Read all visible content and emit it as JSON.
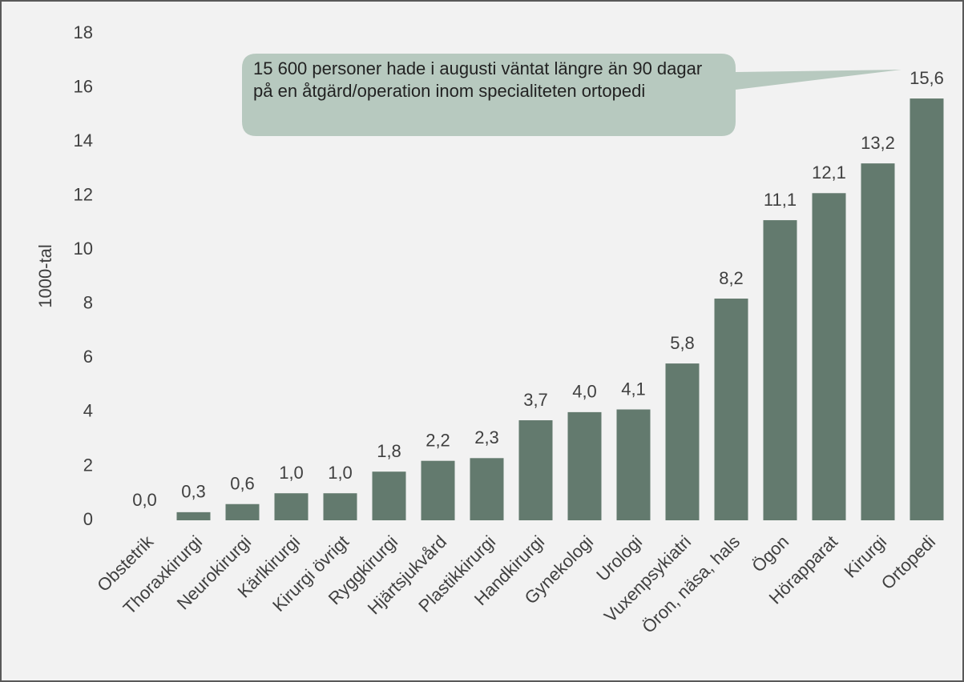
{
  "chart_data": {
    "type": "bar",
    "ylabel": "1000-tal",
    "categories": [
      "Obstetrik",
      "Thoraxkirurgi",
      "Neurokirurgi",
      "Kärlkirurgi",
      "Kirurgi övrigt",
      "Ryggkirurgi",
      "Hjärtsjukvård",
      "Plastikkirurgi",
      "Handkirurgi",
      "Gynekologi",
      "Urologi",
      "Vuxenpsykiatri",
      "Öron, näsa, hals",
      "Ögon",
      "Hörapparat",
      "Kirurgi",
      "Ortopedi"
    ],
    "values": [
      0.0,
      0.3,
      0.6,
      1.0,
      1.0,
      1.8,
      2.2,
      2.3,
      3.7,
      4.0,
      4.1,
      5.8,
      8.2,
      11.1,
      12.1,
      13.2,
      15.6
    ],
    "value_labels": [
      "0,0",
      "0,3",
      "0,6",
      "1,0",
      "1,0",
      "1,8",
      "2,2",
      "2,3",
      "3,7",
      "4,0",
      "4,1",
      "5,8",
      "8,2",
      "11,1",
      "12,1",
      "13,2",
      "15,6"
    ],
    "color": "#637a6e",
    "ylim": [
      0,
      18
    ],
    "yticks": [
      0,
      2,
      4,
      6,
      8,
      10,
      12,
      14,
      16,
      18
    ],
    "annotation": "15 600 personer hade i augusti väntat längre än 90 dagar på en åtgärd/operation inom specialiteten ortopedi"
  }
}
